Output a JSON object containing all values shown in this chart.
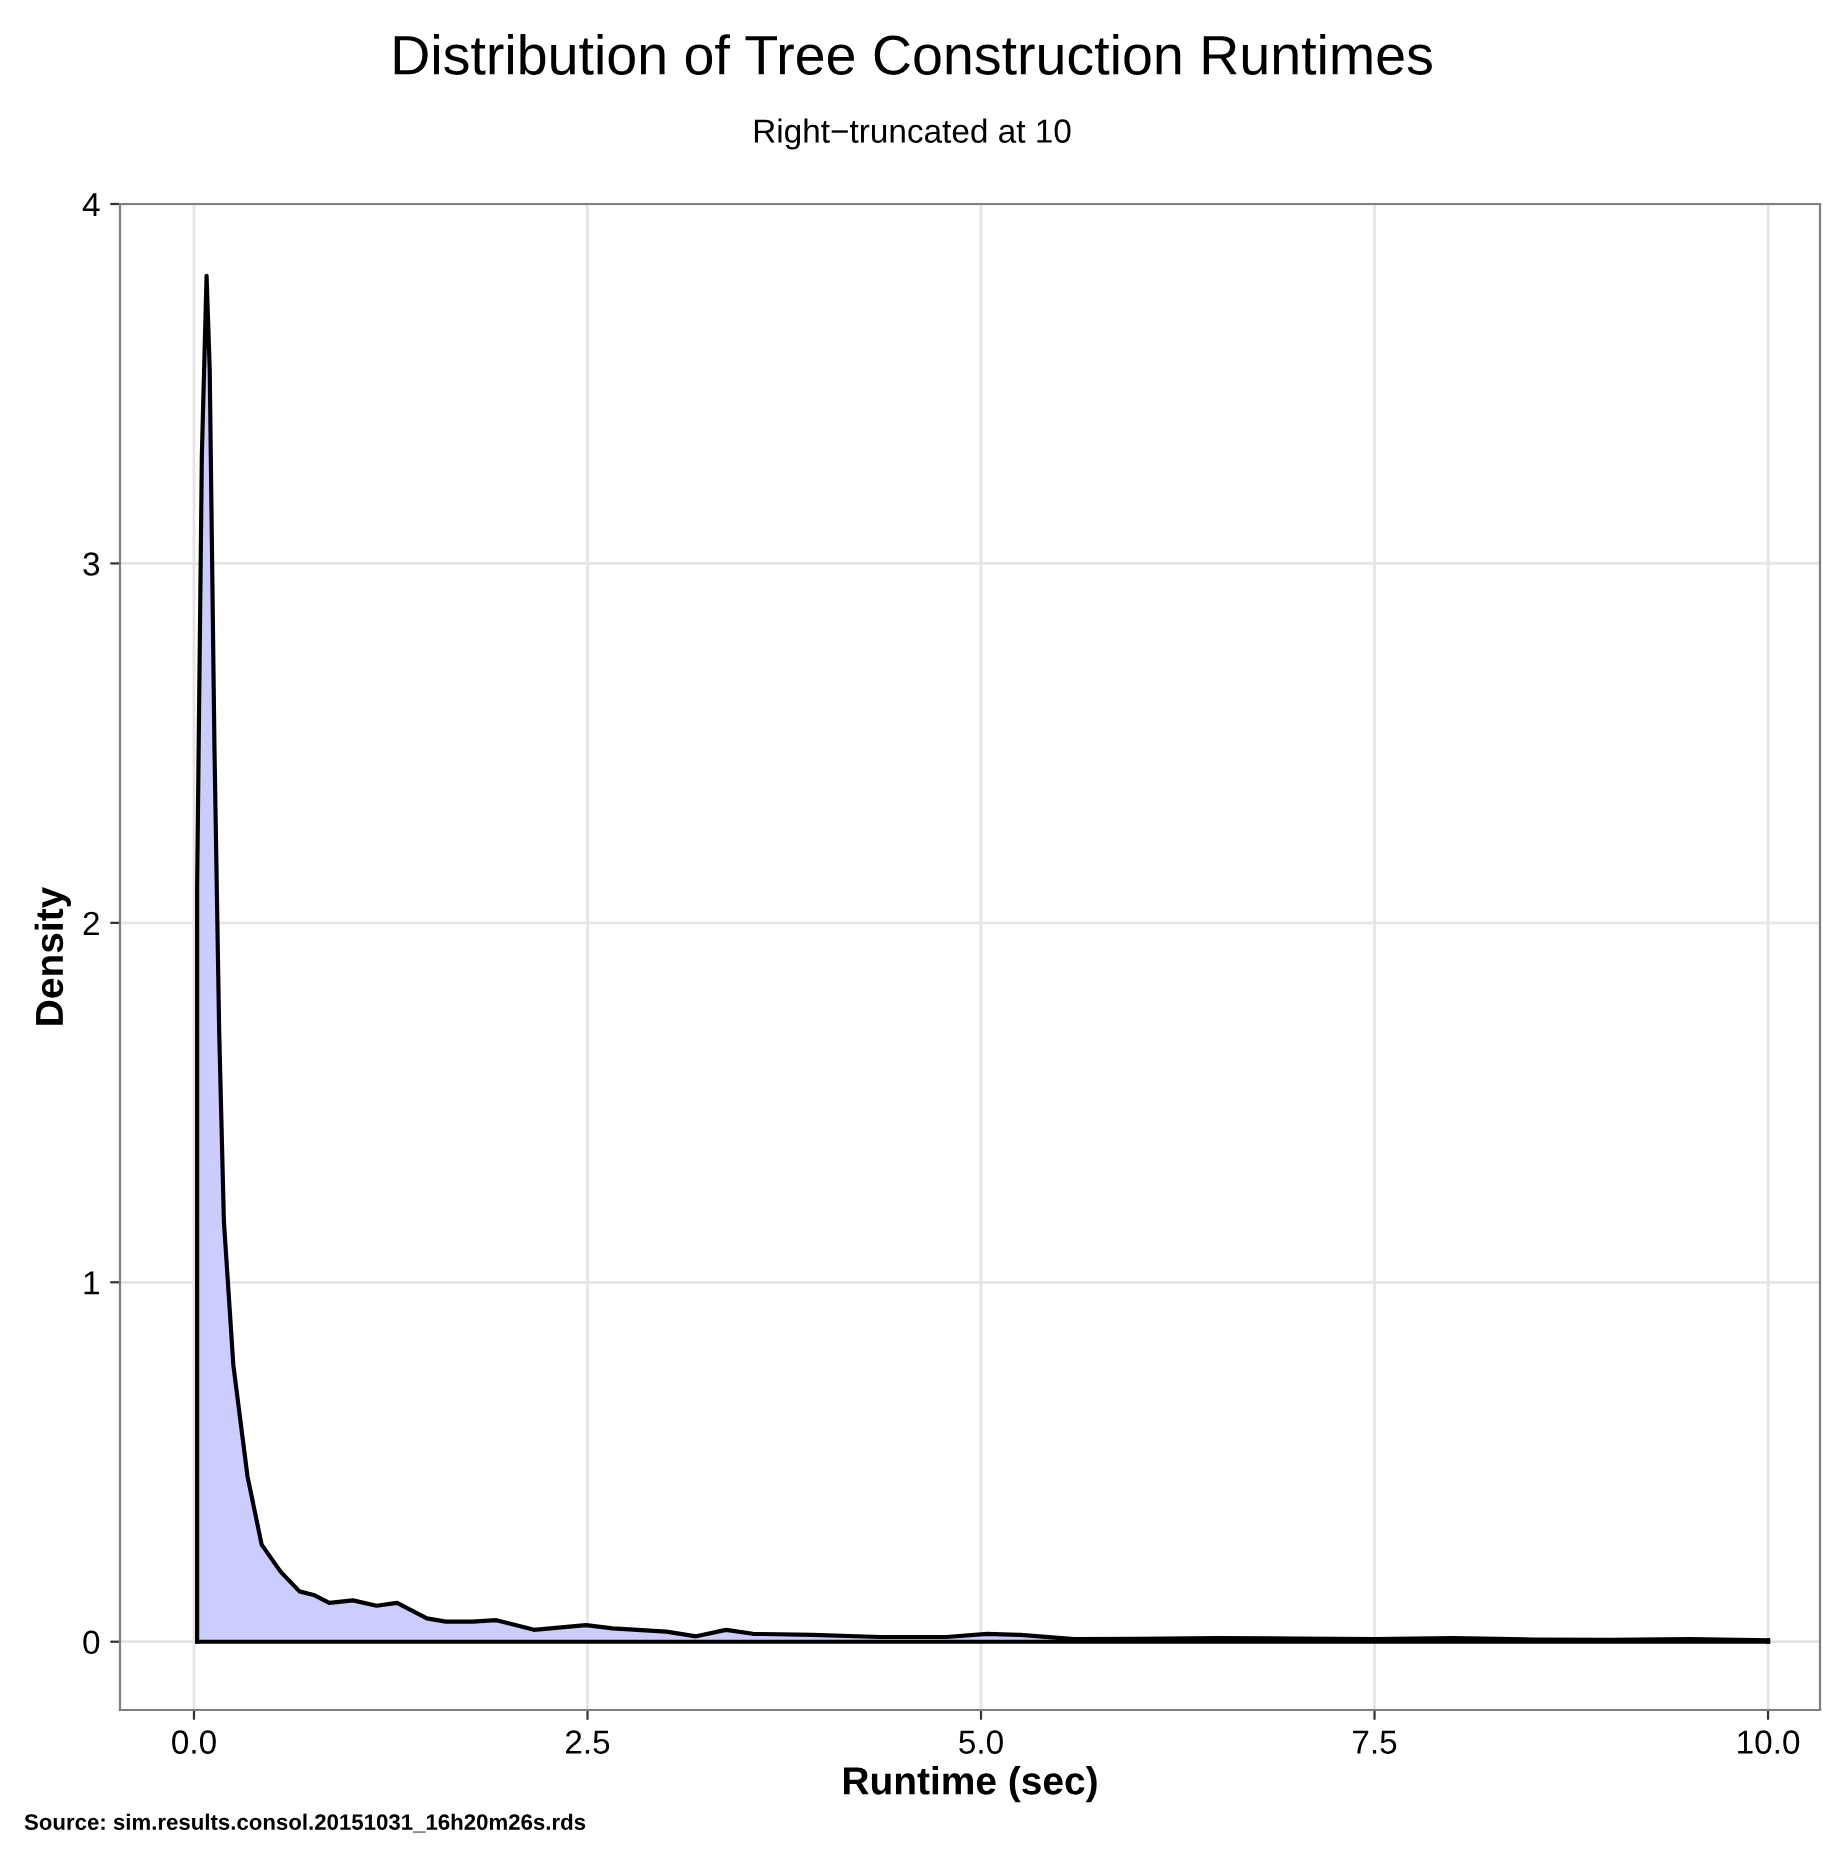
{
  "chart_data": {
    "type": "area",
    "title": "Distribution of Tree Construction Runtimes",
    "subtitle": "Right−truncated at 10",
    "xlabel": "Runtime (sec)",
    "ylabel": "Density",
    "annotations": [
      "Source: sim.results.consol.20151031_16h20m26s.rds"
    ],
    "x": [
      0.02,
      0.02,
      0.05,
      0.08,
      0.1,
      0.13,
      0.16,
      0.19,
      0.25,
      0.34,
      0.43,
      0.55,
      0.67,
      0.76,
      0.86,
      1.01,
      1.16,
      1.29,
      1.48,
      1.6,
      1.77,
      1.92,
      2.16,
      2.49,
      2.66,
      3.0,
      3.19,
      3.38,
      3.55,
      3.93,
      4.36,
      4.78,
      5.04,
      5.25,
      5.59,
      6.0,
      6.5,
      7.0,
      7.5,
      8.0,
      8.5,
      9.0,
      9.5,
      10.0
    ],
    "series": [
      {
        "color": "#ccccff",
        "values": [
          0,
          2.1,
          3.3,
          3.8,
          3.54,
          2.49,
          1.7,
          1.17,
          0.77,
          0.46,
          0.27,
          0.195,
          0.14,
          0.13,
          0.108,
          0.115,
          0.1,
          0.108,
          0.065,
          0.056,
          0.056,
          0.06,
          0.033,
          0.046,
          0.037,
          0.028,
          0.015,
          0.033,
          0.022,
          0.019,
          0.013,
          0.013,
          0.022,
          0.019,
          0.007,
          0.008,
          0.01,
          0.009,
          0.007,
          0.01,
          0.006,
          0.005,
          0.007,
          0.004
        ]
      }
    ],
    "xlim": [
      -0.47,
      10.33
    ],
    "ylim": [
      -0.19,
      4.0
    ],
    "xticks": [
      {
        "value": 0,
        "label": "0.0"
      },
      2.5,
      {
        "value": 5,
        "label": "5.0"
      },
      7.5,
      {
        "value": 10,
        "label": "10.0"
      }
    ],
    "yticks": [
      0,
      1,
      2,
      3,
      4
    ],
    "grid": true
  }
}
